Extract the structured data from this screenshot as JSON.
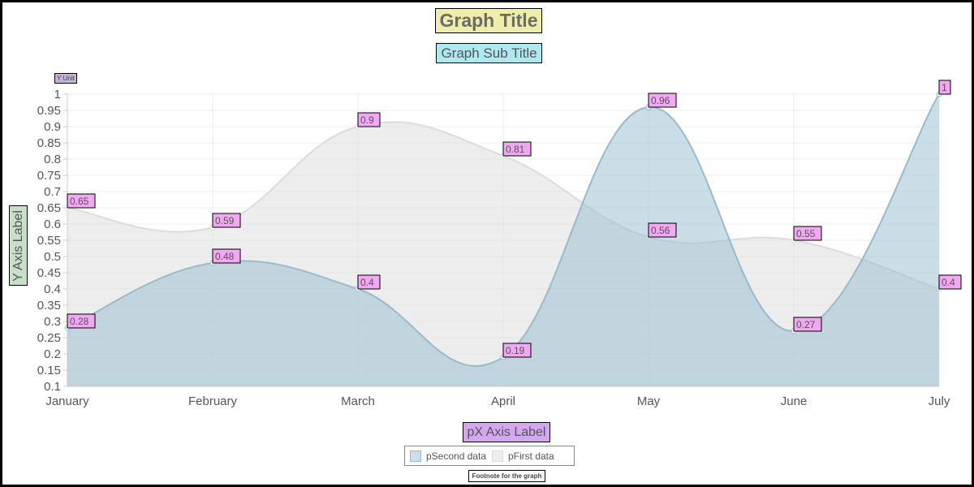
{
  "title": "Graph Title",
  "subtitle": "Graph Sub Title",
  "y_unit": "Y Unit",
  "footnote": "Footnote for the graph",
  "colors": {
    "title_bg": "#eeeeaa",
    "subtitle_bg": "#aee8f0",
    "xlabel_bg": "#d4a8f0",
    "ylabel_bg": "#c8e0c8",
    "data_label_bg": "#f0a8f0",
    "second_series": "#97bbcd",
    "first_series": "#dcdcdc"
  },
  "chart_data": {
    "type": "area",
    "categories": [
      "January",
      "February",
      "March",
      "April",
      "May",
      "June",
      "July"
    ],
    "xlabel": "pX Axis Label",
    "ylabel": "Y Axis Label",
    "ylim": [
      0.1,
      1
    ],
    "yticks": [
      "0.1",
      "0.15",
      "0.2",
      "0.25",
      "0.3",
      "0.35",
      "0.4",
      "0.45",
      "0.5",
      "0.55",
      "0.6",
      "0.65",
      "0.7",
      "0.75",
      "0.8",
      "0.85",
      "0.9",
      "0.95",
      "1"
    ],
    "grid": true,
    "curve": "smooth",
    "legend_position": "bottom",
    "series": [
      {
        "name": "pFirst data",
        "values": [
          0.65,
          0.59,
          0.9,
          0.81,
          0.56,
          0.55,
          0.4
        ],
        "labels": [
          "0.65",
          "0.59",
          "0.9",
          "0.81",
          "0.56",
          "0.55",
          "0.4"
        ],
        "fill": "rgba(220,220,220,0.5)",
        "stroke": "#dcdcdc"
      },
      {
        "name": "pSecond data",
        "values": [
          0.28,
          0.48,
          0.4,
          0.19,
          0.96,
          0.27,
          1
        ],
        "labels": [
          "0.28",
          "0.48",
          "0.4",
          "0.19",
          "0.96",
          "0.27",
          "1"
        ],
        "fill": "rgba(151,187,205,0.5)",
        "stroke": "#97bbcd"
      }
    ]
  }
}
